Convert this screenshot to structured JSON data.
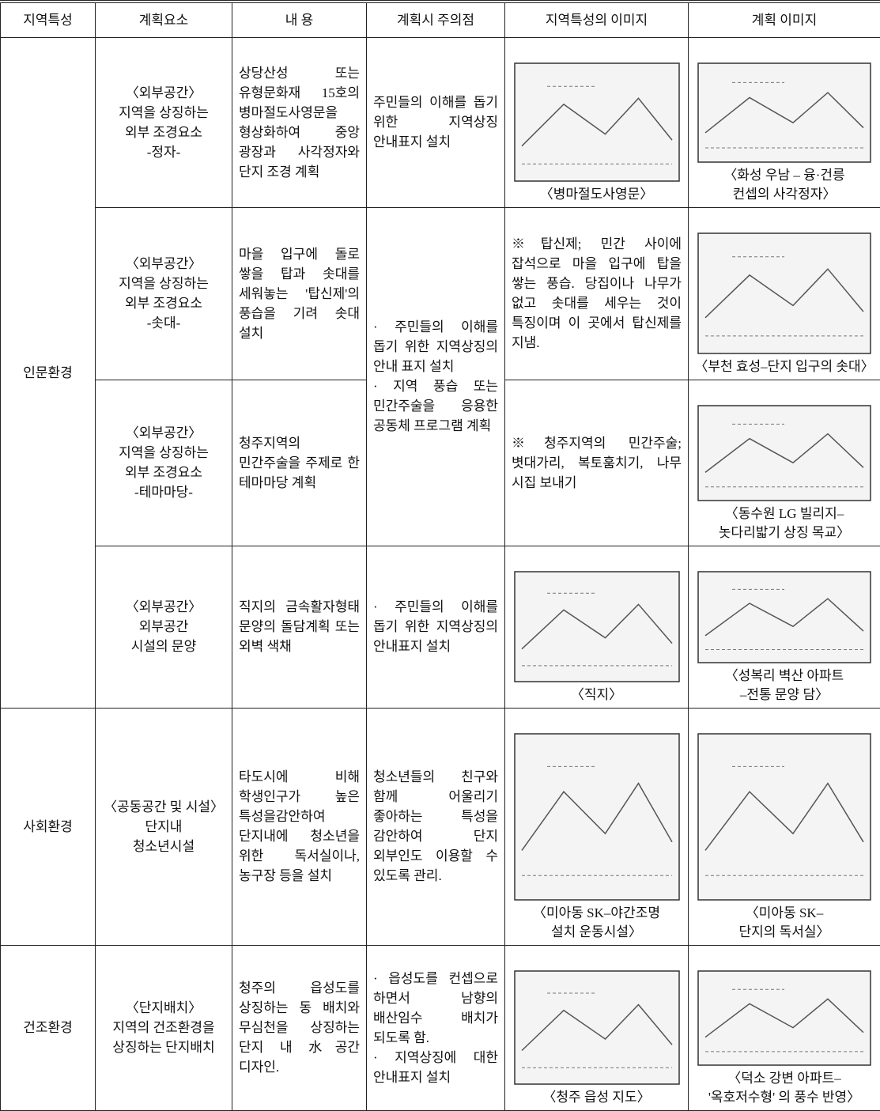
{
  "table": {
    "header": [
      "지역특성",
      "계획요소",
      "내  용",
      "계획시 주의점",
      "지역특성의 이미지",
      "계획 이미지"
    ],
    "groups": [
      {
        "region": "인문환경",
        "items": [
          {
            "element": [
              "〈외부공간〉",
              "지역을 상징하는",
              "외부 조경요소",
              "-정자-"
            ],
            "content": "상당산성 또는 유형문화재 15호의 병마절도사영문을 형상화하여 중앙 광장과 사각정자와 단지 조경 계획",
            "caution": [
              "주민들의 이해를 돕기 위한 지역상징 안내표지 설치"
            ],
            "image1_caption": [
              "〈병마절도사영문〉"
            ],
            "image2_caption": [
              "〈화성 우남 – 융·건릉",
              "컨셉의 사각정자〉"
            ]
          },
          {
            "element": [
              "〈외부공간〉",
              "지역을 상징하는",
              "외부 조경요소",
              "-솟대-"
            ],
            "content": "마을 입구에 돌로 쌓을 탑과 솟대를 세워놓는 '탑신제'의 풍습을 기려 솟대 설치",
            "caution": [
              "· 주민들의 이해를 돕기 위한 지역상징의 안내 표지 설치",
              "· 지역 풍습 또는 민간주술을 응용한 공동체 프로그램 계획"
            ],
            "note": "※탑신제; 민간 사이에 잡석으로 마을 입구에 탑을 쌓는 풍습. 당집이나 나무가 없고 솟대를 세우는 것이 특징이며 이 곳에서 탑신제를 지냄.",
            "image2_caption": [
              "〈부천 효성–단지 입구의 솟대〉"
            ]
          },
          {
            "element": [
              "〈외부공간〉",
              "지역을 상징하는",
              "외부 조경요소",
              "-테마마당-"
            ],
            "content": "청주지역의 민간주술을 주제로 한 테마마당 계획",
            "note": "※청주지역의 민간주술; 볏대가리, 복토훔치기, 나무 시집 보내기",
            "image2_caption": [
              "〈동수원 LG 빌리지–",
              "놋다리밟기 상징 목교〉"
            ]
          },
          {
            "element": [
              "〈외부공간〉",
              "외부공간",
              "시설의 문양"
            ],
            "content": "직지의 금속활자형태 문양의 돌담계획 또는 외벽 색채",
            "caution": [
              "· 주민들의 이해를 돕기 위한 지역상징의 안내표지 설치"
            ],
            "image1_caption": [
              "〈직지〉"
            ],
            "image2_caption": [
              "〈성복리 벽산 아파트",
              "–전통 문양 담〉"
            ]
          }
        ]
      },
      {
        "region": "사회환경",
        "items": [
          {
            "element": [
              "〈공동공간 및 시설〉",
              "단지내",
              "청소년시설"
            ],
            "content": "타도시에 비해 학생인구가 높은 특성을감안하여 단지내에 청소년을 위한 독서실이나, 농구장 등을 설치",
            "caution": [
              "청소년들의 친구와 함께 어울리기 좋아하는 특성을 감안하여 단지 외부인도 이용할 수 있도록 관리."
            ],
            "image1_caption": [
              "〈미아동 SK–야간조명",
              "설치 운동시설〉"
            ],
            "image2_caption": [
              "〈미아동 SK–",
              "단지의 독서실〉"
            ]
          }
        ]
      },
      {
        "region": "건조환경",
        "items": [
          {
            "element": [
              "〈단지배치〉",
              "지역의 건조환경을",
              "상징하는 단지배치"
            ],
            "content": "청주의 읍성도를 상징하는 동 배치와 무심천을 상징하는 단지 내 水공간 디자인.",
            "caution": [
              "· 읍성도를 컨셉으로 하면서 남향의 배산임수 배치가 되도록 함.",
              "· 지역상징에 대한 안내표지 설치"
            ],
            "image1_caption": [
              "〈청주 읍성 지도〉"
            ],
            "image2_caption": [
              "〈덕소 강변 아파트–",
              "'옥호저수형' 의 풍수 반영〉"
            ]
          }
        ]
      }
    ]
  }
}
